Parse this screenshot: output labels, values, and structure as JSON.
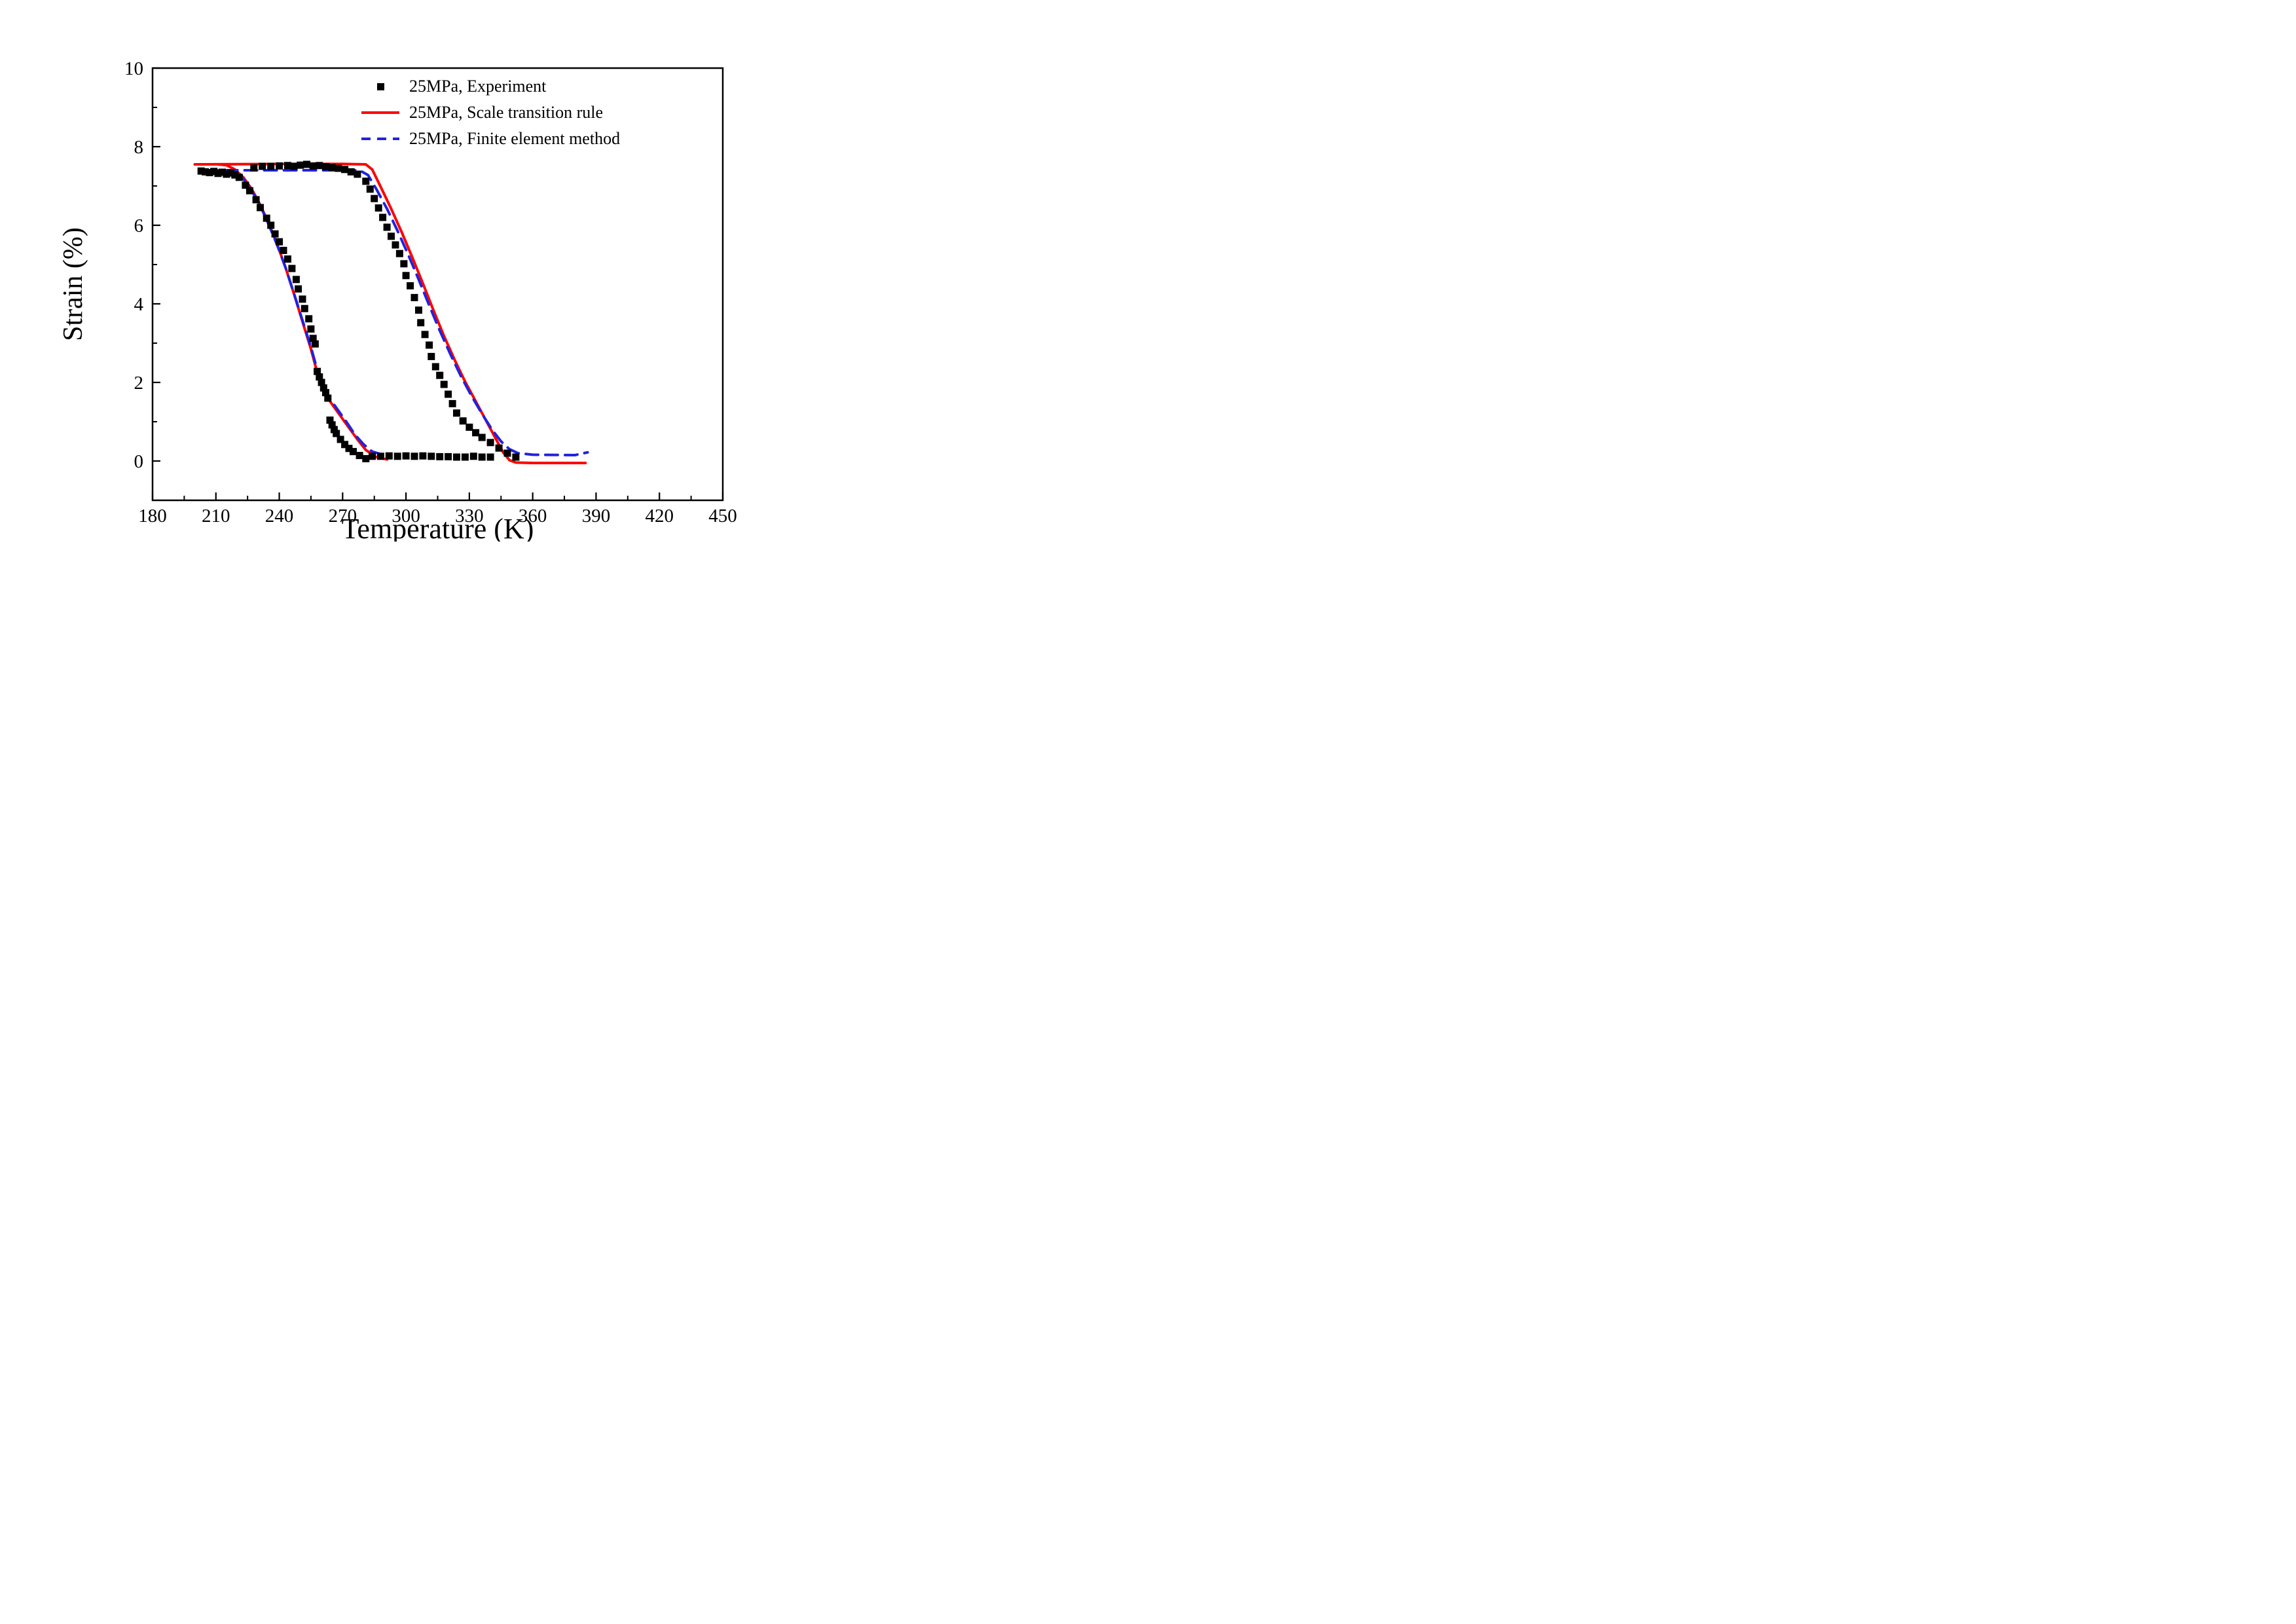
{
  "figure": {
    "background": "#ffffff",
    "axes": {
      "x": {
        "label": "Temperature (K)",
        "min": 180,
        "max": 450
      },
      "y": {
        "label": "Strain (%)",
        "min": -1,
        "max": 10
      }
    }
  },
  "legend": {
    "items": [
      {
        "id": "experiment",
        "label": "25MPa, Experiment",
        "swatch": "square-marker",
        "color": "#000000"
      },
      {
        "id": "scale-transition-rule",
        "label": "25MPa, Scale transition rule",
        "swatch": "solid-line",
        "color": "#ff0000"
      },
      {
        "id": "finite-element-method",
        "label": "25MPa, Finite element method",
        "swatch": "dashed-line",
        "color": "#2222dd"
      }
    ]
  },
  "chart_data": {
    "type": "line",
    "title": "",
    "xlabel": "Temperature (K)",
    "ylabel": "Strain (%)",
    "xlim": [
      180,
      450
    ],
    "ylim": [
      -1,
      10
    ],
    "x_ticks": [
      180,
      210,
      240,
      270,
      300,
      330,
      360,
      390,
      420,
      450
    ],
    "y_ticks": [
      0,
      2,
      4,
      6,
      8,
      10
    ],
    "grid": false,
    "legend_position": "top-center-inside",
    "series": [
      {
        "id": "experiment",
        "name": "25MPa, Experiment",
        "type": "scatter",
        "marker": "square",
        "color": "#000000",
        "points": [
          [
            203,
            7.38
          ],
          [
            205,
            7.36
          ],
          [
            207,
            7.34
          ],
          [
            209,
            7.37
          ],
          [
            211,
            7.32
          ],
          [
            213,
            7.35
          ],
          [
            215,
            7.3
          ],
          [
            217,
            7.33
          ],
          [
            219,
            7.28
          ],
          [
            221,
            7.22
          ],
          [
            224,
            7.02
          ],
          [
            226,
            6.88
          ],
          [
            229,
            6.65
          ],
          [
            231,
            6.45
          ],
          [
            234,
            6.18
          ],
          [
            236,
            6.0
          ],
          [
            238,
            5.78
          ],
          [
            240,
            5.58
          ],
          [
            242,
            5.36
          ],
          [
            244,
            5.14
          ],
          [
            246,
            4.9
          ],
          [
            248,
            4.62
          ],
          [
            249,
            4.38
          ],
          [
            251,
            4.12
          ],
          [
            252,
            3.88
          ],
          [
            254,
            3.62
          ],
          [
            255,
            3.36
          ],
          [
            256,
            3.12
          ],
          [
            257,
            2.98
          ],
          [
            258,
            2.28
          ],
          [
            259,
            2.14
          ],
          [
            260,
            2.0
          ],
          [
            261,
            1.86
          ],
          [
            262,
            1.74
          ],
          [
            263,
            1.6
          ],
          [
            264,
            1.04
          ],
          [
            265,
            0.92
          ],
          [
            266,
            0.8
          ],
          [
            267,
            0.7
          ],
          [
            269,
            0.55
          ],
          [
            271,
            0.42
          ],
          [
            273,
            0.32
          ],
          [
            275,
            0.24
          ],
          [
            278,
            0.14
          ],
          [
            281,
            0.06
          ],
          [
            284,
            0.12
          ],
          [
            288,
            0.12
          ],
          [
            292,
            0.13
          ],
          [
            296,
            0.12
          ],
          [
            300,
            0.13
          ],
          [
            304,
            0.12
          ],
          [
            308,
            0.13
          ],
          [
            312,
            0.12
          ],
          [
            316,
            0.11
          ],
          [
            320,
            0.11
          ],
          [
            324,
            0.1
          ],
          [
            328,
            0.1
          ],
          [
            332,
            0.12
          ],
          [
            336,
            0.1
          ],
          [
            340,
            0.1
          ],
          [
            228,
            7.46
          ],
          [
            232,
            7.5
          ],
          [
            236,
            7.5
          ],
          [
            240,
            7.51
          ],
          [
            244,
            7.52
          ],
          [
            247,
            7.5
          ],
          [
            250,
            7.53
          ],
          [
            253,
            7.55
          ],
          [
            256,
            7.51
          ],
          [
            259,
            7.52
          ],
          [
            262,
            7.49
          ],
          [
            265,
            7.47
          ],
          [
            268,
            7.45
          ],
          [
            271,
            7.42
          ],
          [
            274,
            7.36
          ],
          [
            277,
            7.3
          ],
          [
            281,
            7.12
          ],
          [
            283,
            6.92
          ],
          [
            285,
            6.68
          ],
          [
            287,
            6.44
          ],
          [
            289,
            6.2
          ],
          [
            291,
            5.95
          ],
          [
            293,
            5.72
          ],
          [
            295,
            5.5
          ],
          [
            297,
            5.28
          ],
          [
            299,
            5.02
          ],
          [
            300,
            4.72
          ],
          [
            302,
            4.46
          ],
          [
            304,
            4.16
          ],
          [
            306,
            3.84
          ],
          [
            307,
            3.52
          ],
          [
            309,
            3.22
          ],
          [
            311,
            2.95
          ],
          [
            312,
            2.66
          ],
          [
            314,
            2.4
          ],
          [
            316,
            2.18
          ],
          [
            318,
            1.95
          ],
          [
            320,
            1.7
          ],
          [
            322,
            1.46
          ],
          [
            324,
            1.22
          ],
          [
            327,
            1.02
          ],
          [
            330,
            0.86
          ],
          [
            333,
            0.72
          ],
          [
            336,
            0.6
          ],
          [
            340,
            0.47
          ],
          [
            344,
            0.33
          ],
          [
            348,
            0.2
          ],
          [
            352,
            0.1
          ]
        ]
      },
      {
        "id": "scale-transition-rule",
        "name": "25MPa, Scale transition rule",
        "type": "line",
        "line_style": "solid",
        "color": "#ff0000",
        "segments": [
          [
            [
              200,
              7.55
            ],
            [
              240,
              7.56
            ],
            [
              270,
              7.56
            ],
            [
              281,
              7.55
            ],
            [
              284,
              7.42
            ],
            [
              288,
              6.98
            ],
            [
              293,
              6.42
            ],
            [
              298,
              5.82
            ],
            [
              303,
              5.18
            ],
            [
              308,
              4.52
            ],
            [
              313,
              3.84
            ],
            [
              318,
              3.18
            ],
            [
              323,
              2.58
            ],
            [
              328,
              2.02
            ],
            [
              333,
              1.52
            ],
            [
              338,
              1.02
            ],
            [
              343,
              0.52
            ],
            [
              346,
              0.22
            ],
            [
              349,
              0.02
            ],
            [
              352,
              -0.04
            ],
            [
              360,
              -0.05
            ],
            [
              385,
              -0.05
            ]
          ],
          [
            [
              291,
              0.04
            ],
            [
              286,
              0.1
            ],
            [
              281,
              0.28
            ],
            [
              277,
              0.55
            ],
            [
              272,
              0.92
            ],
            [
              268,
              1.22
            ],
            [
              264,
              1.52
            ],
            [
              261,
              1.8
            ],
            [
              258,
              2.25
            ],
            [
              255,
              2.85
            ],
            [
              251,
              3.55
            ],
            [
              247,
              4.25
            ],
            [
              243,
              4.92
            ],
            [
              239,
              5.52
            ],
            [
              235,
              6.05
            ],
            [
              231,
              6.52
            ],
            [
              227,
              6.92
            ],
            [
              223,
              7.22
            ],
            [
              219,
              7.42
            ],
            [
              215,
              7.53
            ],
            [
              211,
              7.55
            ]
          ]
        ]
      },
      {
        "id": "finite-element-method",
        "name": "25MPa, Finite element method",
        "type": "line",
        "line_style": "dashed",
        "color": "#2222dd",
        "segments": [
          [
            [
              205,
              7.4
            ],
            [
              240,
              7.4
            ],
            [
              278,
              7.4
            ],
            [
              282,
              7.28
            ],
            [
              286,
              6.92
            ],
            [
              291,
              6.42
            ],
            [
              296,
              5.86
            ],
            [
              301,
              5.26
            ],
            [
              306,
              4.62
            ],
            [
              311,
              3.96
            ],
            [
              316,
              3.32
            ],
            [
              321,
              2.72
            ],
            [
              326,
              2.16
            ],
            [
              331,
              1.66
            ],
            [
              336,
              1.2
            ],
            [
              341,
              0.78
            ],
            [
              345,
              0.5
            ],
            [
              349,
              0.3
            ],
            [
              353,
              0.2
            ],
            [
              360,
              0.16
            ],
            [
              380,
              0.15
            ],
            [
              386,
              0.22
            ]
          ],
          [
            [
              289,
              0.16
            ],
            [
              284,
              0.24
            ],
            [
              280,
              0.42
            ],
            [
              276,
              0.66
            ],
            [
              272,
              0.98
            ],
            [
              268,
              1.28
            ],
            [
              264,
              1.58
            ],
            [
              261,
              1.88
            ],
            [
              258,
              2.32
            ],
            [
              255,
              2.9
            ],
            [
              251,
              3.58
            ],
            [
              247,
              4.26
            ],
            [
              243,
              4.92
            ],
            [
              239,
              5.5
            ],
            [
              235,
              6.02
            ],
            [
              231,
              6.5
            ],
            [
              227,
              6.88
            ],
            [
              223,
              7.18
            ],
            [
              219,
              7.36
            ],
            [
              213,
              7.4
            ]
          ]
        ]
      }
    ]
  }
}
